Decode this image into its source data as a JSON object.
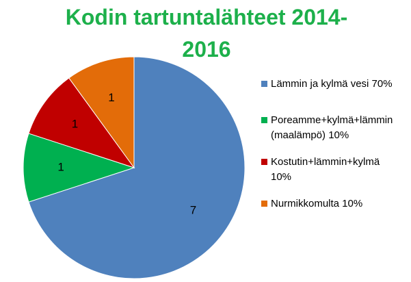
{
  "chart_data": {
    "type": "pie",
    "title_lines": [
      "Kodin tartuntalähteet 2014-",
      "2016"
    ],
    "title_color": "#1DB04B",
    "slices": [
      {
        "label": "7",
        "value": 7,
        "color": "#4F81BD",
        "legend_lines": [
          "Lämmin ja kylmä vesi 70%"
        ]
      },
      {
        "label": "1",
        "value": 1,
        "color": "#00B050",
        "legend_lines": [
          "Poreamme+kylmä+lämmin",
          "(maalämpö) 10%"
        ]
      },
      {
        "label": "1",
        "value": 1,
        "color": "#C00000",
        "legend_lines": [
          "Kostutin+lämmin+kylmä",
          "10%"
        ]
      },
      {
        "label": "1",
        "value": 1,
        "color": "#E36C09",
        "legend_lines": [
          "Nurmikkomulta 10%"
        ]
      }
    ],
    "legend_position": "right"
  }
}
